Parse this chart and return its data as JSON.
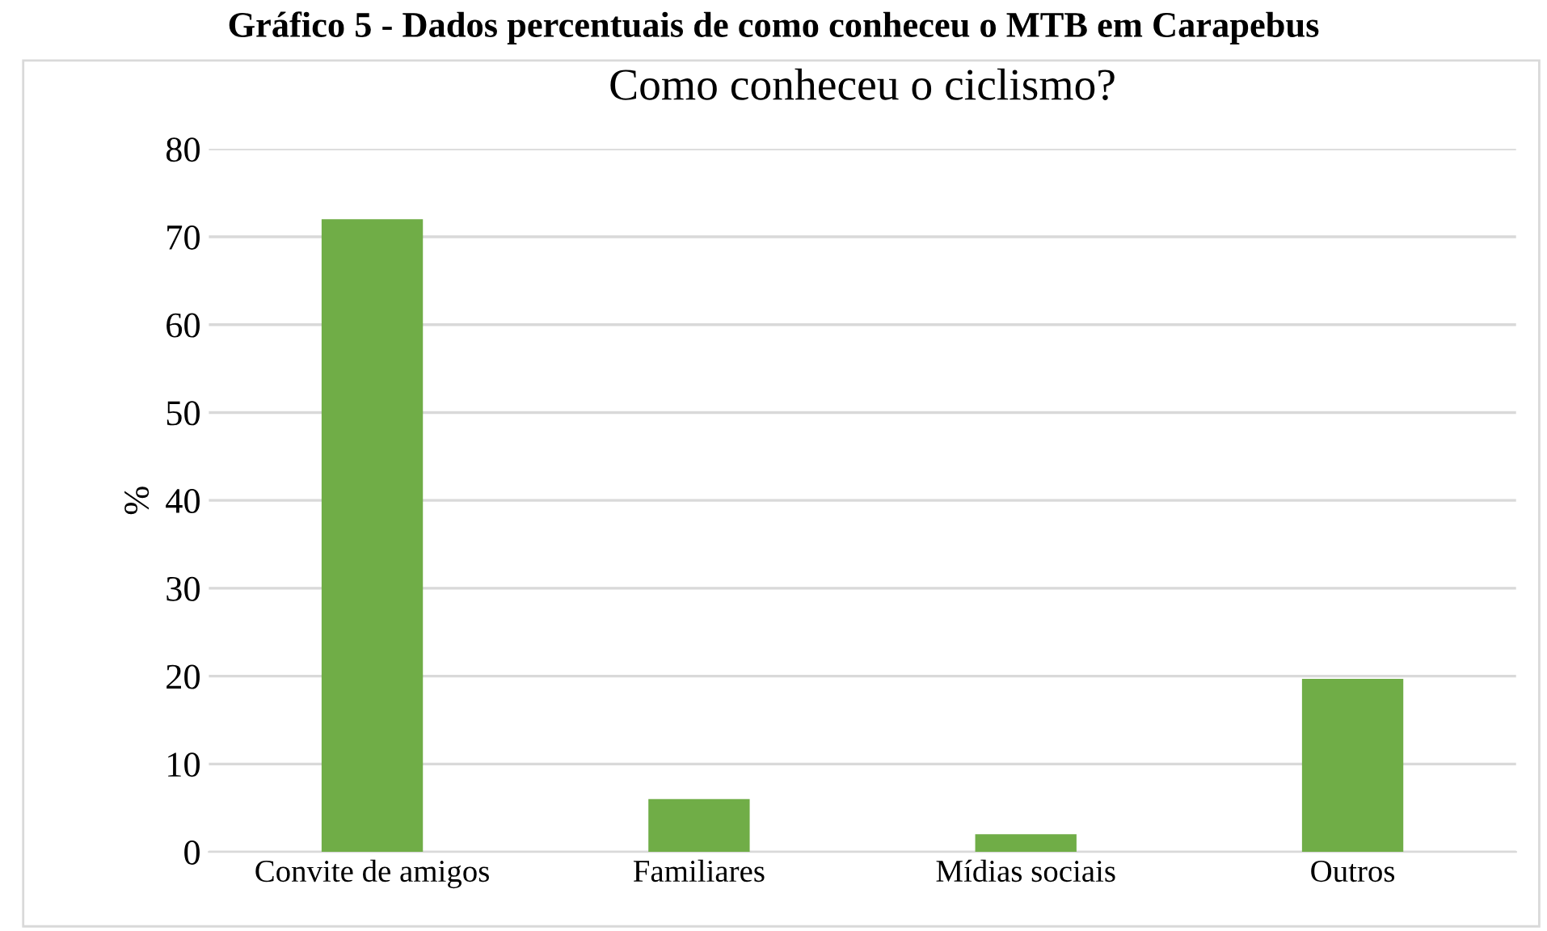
{
  "chart_data": {
    "type": "bar",
    "title": "Como conheceu o ciclismo?",
    "ylabel": "%",
    "annotations": [
      "Gráfico 5 - Dados percentuais de como conheceu o MTB em Carapebus"
    ],
    "categories": [
      "Convite de amigos",
      "Familiares",
      "Mídias sociais",
      "Outros"
    ],
    "values": [
      72,
      6,
      2,
      19.7
    ],
    "color": "#70ad47",
    "ylim": [
      0,
      80
    ],
    "yticks": [
      0,
      10,
      20,
      30,
      40,
      50,
      60,
      70,
      80
    ],
    "grid": "y",
    "legend": false
  }
}
